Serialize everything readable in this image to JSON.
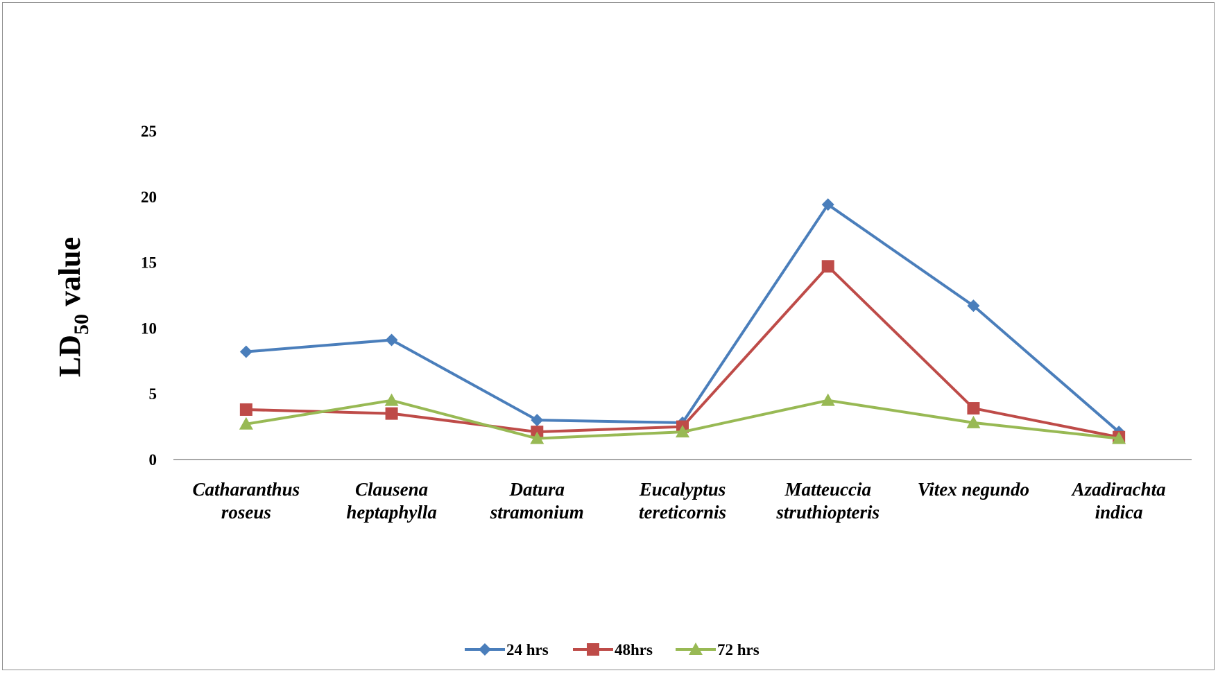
{
  "chart_data": {
    "type": "line",
    "ylabel": {
      "main": "LD",
      "sub": "50",
      "rest": " value"
    },
    "xlabel": "",
    "ylim": [
      0,
      25
    ],
    "yticks": [
      0,
      5,
      10,
      15,
      20,
      25
    ],
    "grid": false,
    "legend": "bottom",
    "categories": [
      [
        "Catharanthus",
        "roseus"
      ],
      [
        "Clausena",
        "heptaphylla"
      ],
      [
        "Datura",
        "stramonium"
      ],
      [
        "Eucalyptus",
        "tereticornis"
      ],
      [
        "Matteuccia",
        "struthiopteris"
      ],
      [
        "Vitex negundo"
      ],
      [
        "Azadirachta",
        "indica"
      ]
    ],
    "series": [
      {
        "name": "24 hrs",
        "color": "#4a7ebb",
        "marker": "diamond",
        "values": [
          8.2,
          9.1,
          3.0,
          2.8,
          19.4,
          11.7,
          2.1
        ]
      },
      {
        "name": "48hrs",
        "color": "#be4b48",
        "marker": "square",
        "values": [
          3.8,
          3.5,
          2.1,
          2.5,
          14.7,
          3.9,
          1.7
        ]
      },
      {
        "name": "72 hrs",
        "color": "#98b954",
        "marker": "triangle",
        "values": [
          2.7,
          4.5,
          1.6,
          2.1,
          4.5,
          2.8,
          1.6
        ]
      }
    ]
  }
}
